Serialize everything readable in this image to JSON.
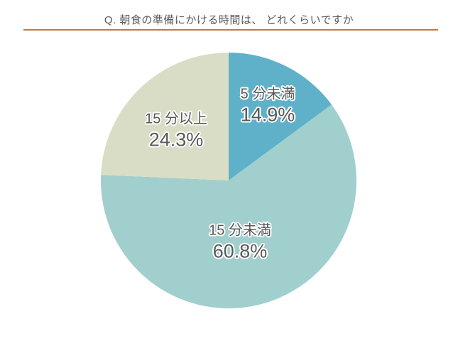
{
  "chart_data": {
    "type": "pie",
    "title": "Q. 朝食の準備にかける時間は、 どれくらいですか",
    "slices": [
      {
        "label": "5 分未満",
        "value": 14.9,
        "pct_label": "14.9%",
        "color": "#5EB1C9"
      },
      {
        "label": "15 分未満",
        "value": 60.8,
        "pct_label": "60.8%",
        "color": "#A1CFCD"
      },
      {
        "label": "15 分以上",
        "value": 24.3,
        "pct_label": "24.3%",
        "color": "#DADDC5"
      }
    ],
    "start_angle_deg": 0,
    "direction": "clockwise",
    "legend_position": "none",
    "labels_on_slices": true,
    "text_color": "#595959",
    "accent_line_color": "#C9763C",
    "background_color": "#FFFFFF"
  }
}
